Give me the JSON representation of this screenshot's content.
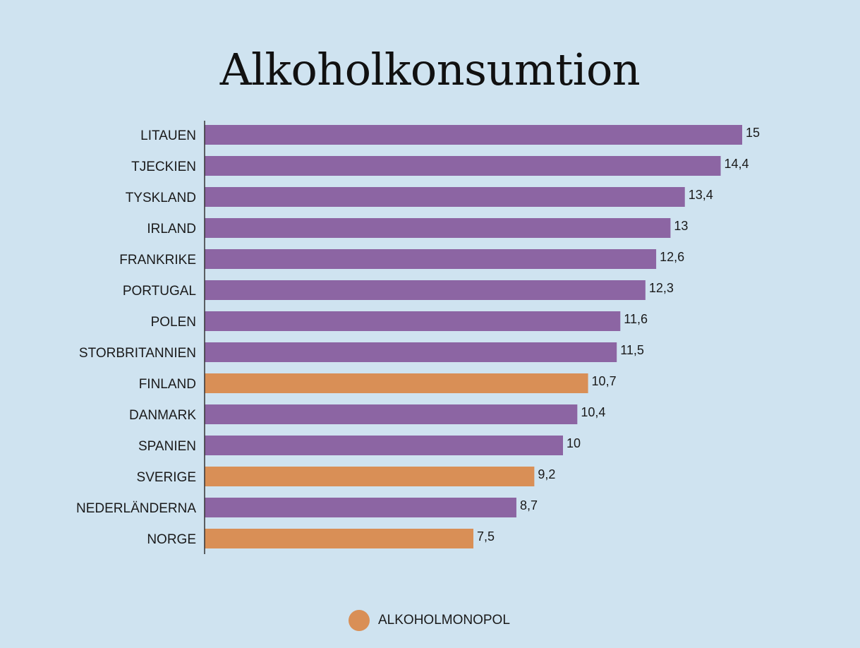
{
  "chart_data": {
    "type": "bar",
    "orientation": "horizontal",
    "title": "Alkoholkonsumtion",
    "categories": [
      "LITAUEN",
      "TJECKIEN",
      "TYSKLAND",
      "IRLAND",
      "FRANKRIKE",
      "PORTUGAL",
      "POLEN",
      "STORBRITANNIEN",
      "FINLAND",
      "DANMARK",
      "SPANIEN",
      "SVERIGE",
      "NEDERLÄNDERNA",
      "NORGE"
    ],
    "values": [
      15,
      14.4,
      13.4,
      13,
      12.6,
      12.3,
      11.6,
      11.5,
      10.7,
      10.4,
      10,
      9.2,
      8.7,
      7.5
    ],
    "value_labels": [
      "15",
      "14,4",
      "13,4",
      "13",
      "12,6",
      "12,3",
      "11,6",
      "11,5",
      "10,7",
      "10,4",
      "10",
      "9,2",
      "8,7",
      "7,5"
    ],
    "monopoly": [
      false,
      false,
      false,
      false,
      false,
      false,
      false,
      false,
      true,
      false,
      false,
      true,
      false,
      true
    ],
    "colors": {
      "default": "#8c65a3",
      "monopoly": "#d98f56",
      "axis": "#333333"
    },
    "legend": {
      "label": "ALKOHOLMONOPOL",
      "color": "#d98f56",
      "placement": "bottom-center"
    },
    "xlim": [
      0,
      15
    ],
    "grid": false
  }
}
